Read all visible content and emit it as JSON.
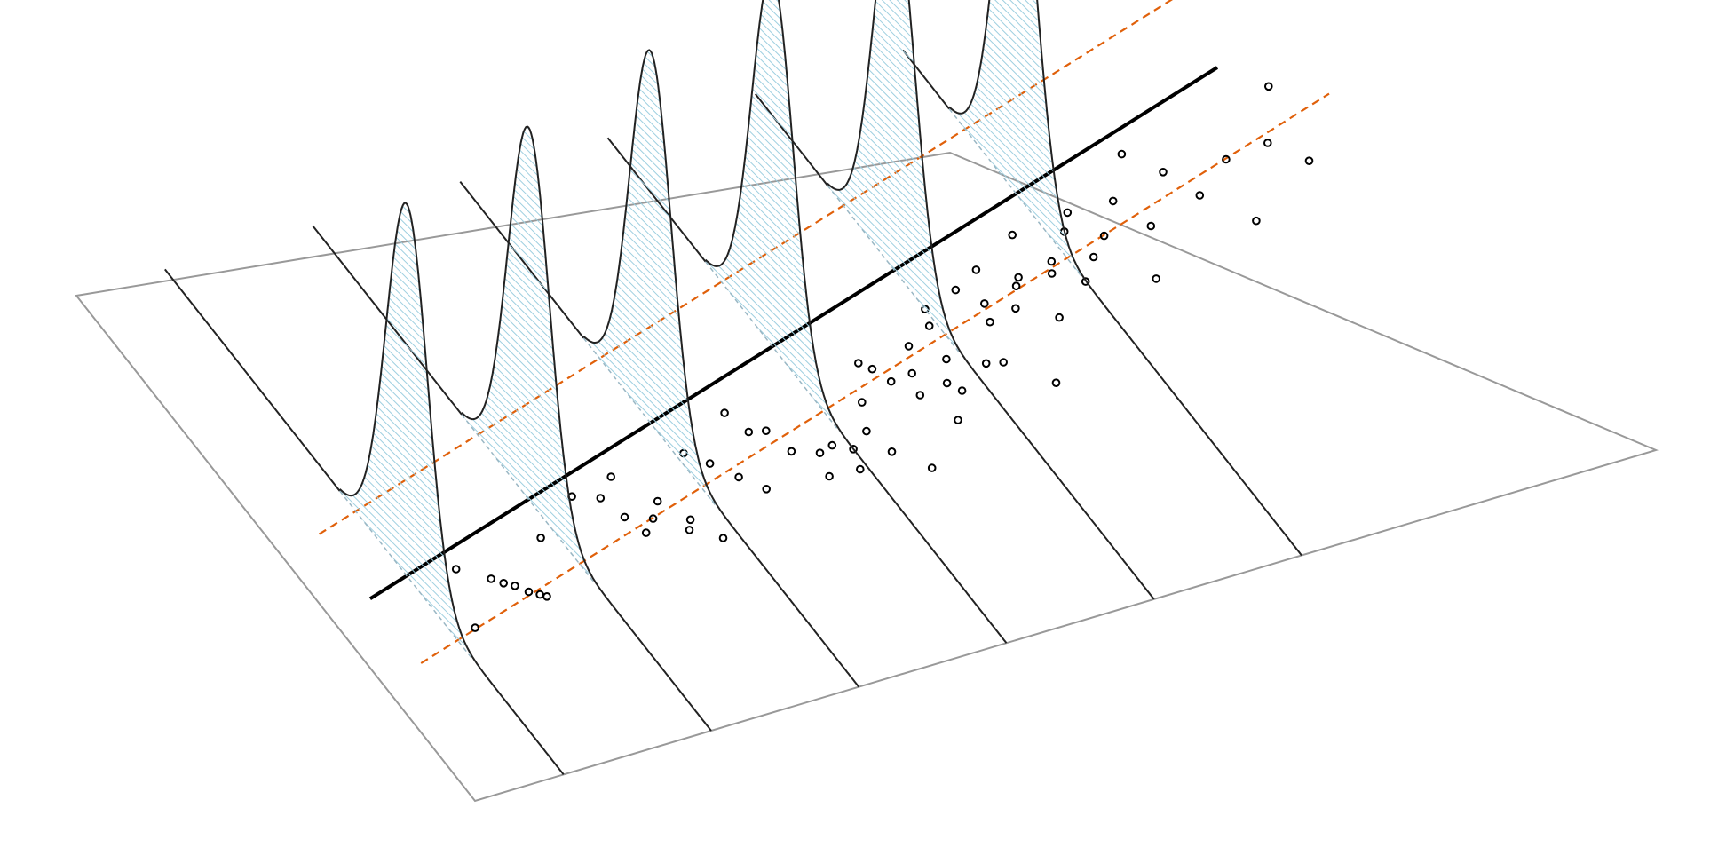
{
  "chart_data": {
    "type": "scatter",
    "title": "",
    "xlabel": "",
    "ylabel": "",
    "regression": {
      "intercept": 0.0,
      "slope": 1.0
    },
    "band": {
      "offset_sd": 1.65
    },
    "slice_x": [
      0.6,
      1.6,
      2.6,
      3.6,
      4.6,
      5.6
    ],
    "density_sd": 0.8,
    "points": [
      [
        0.9,
        0.4
      ],
      [
        1.05,
        -0.1
      ],
      [
        1.1,
        -0.3
      ],
      [
        1.15,
        -0.45
      ],
      [
        1.2,
        -0.7
      ],
      [
        1.25,
        -0.85
      ],
      [
        1.28,
        -0.95
      ],
      [
        0.75,
        -1.2
      ],
      [
        1.5,
        0.55
      ],
      [
        1.85,
        1.35
      ],
      [
        2.0,
        1.1
      ],
      [
        2.05,
        0.45
      ],
      [
        2.15,
        1.55
      ],
      [
        2.2,
        0.2
      ],
      [
        2.3,
        0.6
      ],
      [
        2.4,
        -0.1
      ],
      [
        2.35,
        -0.35
      ],
      [
        2.1,
        -0.1
      ],
      [
        2.5,
        -0.8
      ],
      [
        2.65,
        1.6
      ],
      [
        2.75,
        1.15
      ],
      [
        2.85,
        0.6
      ],
      [
        2.95,
        0.1
      ],
      [
        3.05,
        2.3
      ],
      [
        3.1,
        1.65
      ],
      [
        3.2,
        1.55
      ],
      [
        3.25,
        0.85
      ],
      [
        3.35,
        -0.05
      ],
      [
        3.4,
        0.6
      ],
      [
        3.55,
        -0.1
      ],
      [
        3.5,
        0.7
      ],
      [
        3.6,
        0.45
      ],
      [
        3.75,
        0.8
      ],
      [
        3.8,
        0.1
      ],
      [
        3.85,
        1.55
      ],
      [
        3.95,
        -0.6
      ],
      [
        4.0,
        2.55
      ],
      [
        4.05,
        2.3
      ],
      [
        4.1,
        1.85
      ],
      [
        4.2,
        1.3
      ],
      [
        4.25,
        1.9
      ],
      [
        4.3,
        0.4
      ],
      [
        4.35,
        2.6
      ],
      [
        4.4,
        1.4
      ],
      [
        4.45,
        1.1
      ],
      [
        4.5,
        2.0
      ],
      [
        4.55,
        2.95
      ],
      [
        4.6,
        3.4
      ],
      [
        4.7,
        1.6
      ],
      [
        4.8,
        1.5
      ],
      [
        4.85,
        3.65
      ],
      [
        4.9,
        2.6
      ],
      [
        4.95,
        3.1
      ],
      [
        5.0,
        0.6
      ],
      [
        5.05,
        4.0
      ],
      [
        5.1,
        2.75
      ],
      [
        5.2,
        3.3
      ],
      [
        5.25,
        3.5
      ],
      [
        5.3,
        2.2
      ],
      [
        5.4,
        4.6
      ],
      [
        5.45,
        3.35
      ],
      [
        5.5,
        3.65
      ],
      [
        5.6,
        2.9
      ],
      [
        5.7,
        4.3
      ],
      [
        5.75,
        3.45
      ],
      [
        5.8,
        4.75
      ],
      [
        5.9,
        3.9
      ],
      [
        6.0,
        2.45
      ],
      [
        6.1,
        4.7
      ],
      [
        6.2,
        3.8
      ],
      [
        6.35,
        5.8
      ],
      [
        6.5,
        5.05
      ],
      [
        6.6,
        4.2
      ],
      [
        6.8,
        3.15
      ],
      [
        6.9,
        4.9
      ],
      [
        7.2,
        5.0
      ],
      [
        7.35,
        4.25
      ],
      [
        7.45,
        6.4
      ]
    ]
  },
  "colors": {
    "plane": "#999999",
    "curve": "#222222",
    "fill": "#add8e6",
    "band": "#e0600a",
    "line": "#000000"
  }
}
